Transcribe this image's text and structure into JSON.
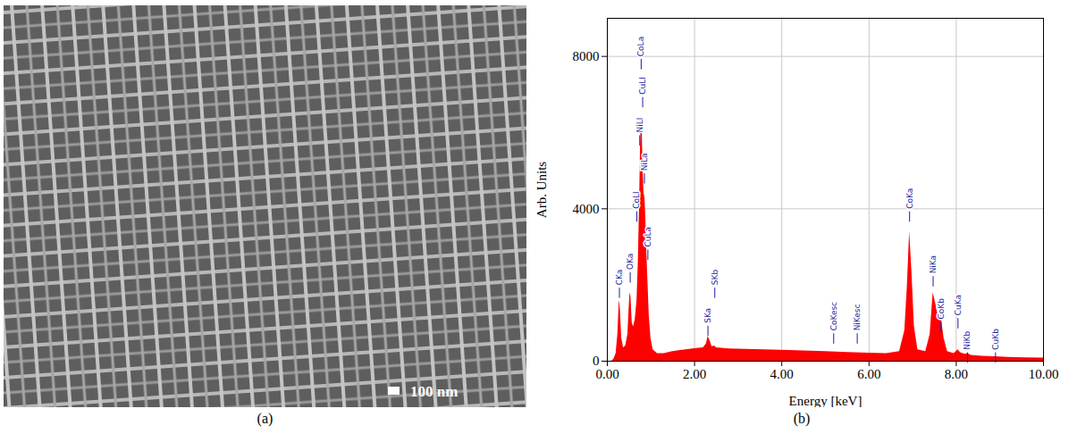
{
  "image_panel": {
    "label": "(a)",
    "scale_bar": "100 nm"
  },
  "chart_data": {
    "type": "area",
    "panel_label": "(b)",
    "x_label": "Energy [keV]",
    "y_label": "Arb. Units",
    "color": "#ff0000",
    "grid": true,
    "xlim": [
      0,
      10
    ],
    "xticks": [
      {
        "value": 0,
        "label": "0.00"
      },
      {
        "value": 2,
        "label": "2.00"
      },
      {
        "value": 4,
        "label": "4.00"
      },
      {
        "value": 6,
        "label": "6.00"
      },
      {
        "value": 8,
        "label": "8.00"
      },
      {
        "value": 10,
        "label": "10.00"
      }
    ],
    "ylim": [
      0,
      9000
    ],
    "yticks": [
      0,
      4000,
      8000
    ],
    "x": [
      0.0,
      0.1,
      0.15,
      0.2,
      0.24,
      0.27,
      0.28,
      0.3,
      0.33,
      0.37,
      0.42,
      0.47,
      0.5,
      0.52,
      0.54,
      0.57,
      0.6,
      0.64,
      0.68,
      0.71,
      0.74,
      0.76,
      0.78,
      0.8,
      0.82,
      0.84,
      0.86,
      0.88,
      0.9,
      0.93,
      0.96,
      1.0,
      1.05,
      1.15,
      1.3,
      1.5,
      1.8,
      2.0,
      2.2,
      2.27,
      2.31,
      2.35,
      2.4,
      2.46,
      2.5,
      2.8,
      3.2,
      3.6,
      4.0,
      4.5,
      5.0,
      5.5,
      6.0,
      6.4,
      6.7,
      6.82,
      6.88,
      6.93,
      6.98,
      7.04,
      7.12,
      7.3,
      7.4,
      7.47,
      7.53,
      7.6,
      7.65,
      7.72,
      7.8,
      7.95,
      8.04,
      8.1,
      8.2,
      8.26,
      8.35,
      8.6,
      8.9,
      9.2,
      9.6,
      10.0
    ],
    "values": [
      0,
      0,
      50,
      200,
      700,
      1500,
      1600,
      1300,
      600,
      350,
      400,
      700,
      1400,
      1800,
      1700,
      1000,
      900,
      1100,
      1600,
      2600,
      4200,
      5600,
      6400,
      6000,
      5000,
      4400,
      4300,
      3800,
      3000,
      2100,
      1200,
      600,
      300,
      200,
      200,
      250,
      300,
      330,
      350,
      450,
      650,
      550,
      380,
      400,
      350,
      320,
      310,
      300,
      290,
      270,
      250,
      230,
      210,
      200,
      250,
      800,
      2000,
      3400,
      2400,
      900,
      300,
      250,
      700,
      1800,
      1500,
      1100,
      1200,
      600,
      250,
      200,
      300,
      220,
      180,
      200,
      150,
      130,
      120,
      100,
      90,
      80
    ],
    "annotations": [
      {
        "text": "CKa",
        "x": 0.277,
        "y": 2000
      },
      {
        "text": "OKa",
        "x": 0.525,
        "y": 2400
      },
      {
        "text": "CoLl",
        "x": 0.677,
        "y": 4000
      },
      {
        "text": "CuLa",
        "x": 0.93,
        "y": 3000
      },
      {
        "text": "NiLa",
        "x": 0.851,
        "y": 5000
      },
      {
        "text": "NiLl",
        "x": 0.743,
        "y": 6000
      },
      {
        "text": "CuLl",
        "x": 0.811,
        "y": 7000
      },
      {
        "text": "CoLa",
        "x": 0.776,
        "y": 8000
      },
      {
        "text": "SKa",
        "x": 2.307,
        "y": 1000
      },
      {
        "text": "SKb",
        "x": 2.464,
        "y": 2000
      },
      {
        "text": "CoKesc",
        "x": 5.19,
        "y": 800
      },
      {
        "text": "NiKesc",
        "x": 5.73,
        "y": 800
      },
      {
        "text": "CoKa",
        "x": 6.93,
        "y": 4000
      },
      {
        "text": "NiKa",
        "x": 7.47,
        "y": 2300
      },
      {
        "text": "CoKb",
        "x": 7.65,
        "y": 1100
      },
      {
        "text": "CuKa",
        "x": 8.04,
        "y": 1200
      },
      {
        "text": "NiKb",
        "x": 8.26,
        "y": 300
      },
      {
        "text": "CuKb",
        "x": 8.9,
        "y": 300
      }
    ]
  }
}
